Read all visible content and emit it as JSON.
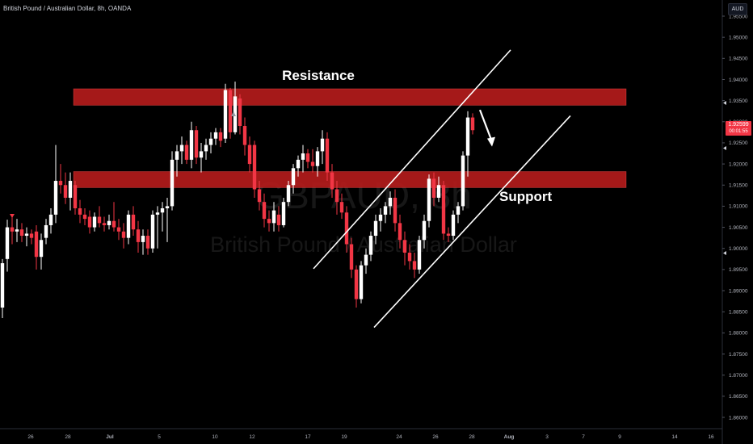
{
  "header": {
    "symbol_title": "British Pound / Australian Dollar, 8h, OANDA"
  },
  "currency_badge": "AUD",
  "watermark": {
    "ticker": "GBPAUD, 8h",
    "name": "British Pound / Australian Dollar"
  },
  "price_label": {
    "price": "1.92599",
    "countdown": "00:01:55",
    "color": "#f23645"
  },
  "colors": {
    "up": "#ffffff",
    "down": "#f23645",
    "zone": "#b71c1c"
  },
  "chart_data": {
    "type": "candlestick",
    "title": "",
    "xlabel": "",
    "ylabel": "",
    "ylim": [
      1.857,
      1.958
    ],
    "grid": false,
    "y_ticks": [
      "1.95500",
      "1.95000",
      "1.94500",
      "1.94000",
      "1.93500",
      "1.93000",
      "1.92500",
      "1.92000",
      "1.91500",
      "1.91000",
      "1.90500",
      "1.90000",
      "1.89500",
      "1.89000",
      "1.88500",
      "1.88000",
      "1.87500",
      "1.87000",
      "1.86500",
      "1.86000"
    ],
    "x_ticks": [
      "26",
      "28",
      "Jul",
      "5",
      "10",
      "12",
      "17",
      "19",
      "24",
      "26",
      "28",
      "Aug",
      "3",
      "7",
      "9",
      "14",
      "16"
    ],
    "zones": [
      {
        "label": "Resistance",
        "low": 1.9339,
        "high": 1.9378
      },
      {
        "label": "Support",
        "low": 1.9144,
        "high": 1.9182
      }
    ],
    "channel": {
      "upper": [
        [
          388,
          1.8952
        ],
        [
          632,
          1.947
        ]
      ],
      "lower": [
        [
          463,
          1.8813
        ],
        [
          706,
          1.9314
        ]
      ]
    },
    "forecast_arrow": {
      "from": [
        594,
        1.9328
      ],
      "to": [
        609,
        1.9241
      ]
    },
    "candles": [
      {
        "x": 3,
        "o": 1.886,
        "h": 1.8975,
        "l": 1.8835,
        "c": 1.8965
      },
      {
        "x": 9,
        "o": 1.8975,
        "h": 1.9068,
        "l": 1.8945,
        "c": 1.905
      },
      {
        "x": 15,
        "o": 1.905,
        "h": 1.9075,
        "l": 1.901,
        "c": 1.904
      },
      {
        "x": 21,
        "o": 1.904,
        "h": 1.907,
        "l": 1.9015,
        "c": 1.9045
      },
      {
        "x": 27,
        "o": 1.9045,
        "h": 1.906,
        "l": 1.9015,
        "c": 1.903
      },
      {
        "x": 33,
        "o": 1.903,
        "h": 1.905,
        "l": 1.9005,
        "c": 1.9035
      },
      {
        "x": 39,
        "o": 1.9035,
        "h": 1.9045,
        "l": 1.901,
        "c": 1.9025
      },
      {
        "x": 45,
        "o": 1.904,
        "h": 1.9055,
        "l": 1.895,
        "c": 1.898
      },
      {
        "x": 51,
        "o": 1.898,
        "h": 1.9035,
        "l": 1.895,
        "c": 1.902
      },
      {
        "x": 57,
        "o": 1.9025,
        "h": 1.907,
        "l": 1.901,
        "c": 1.9055
      },
      {
        "x": 63,
        "o": 1.9055,
        "h": 1.9095,
        "l": 1.9035,
        "c": 1.908
      },
      {
        "x": 69,
        "o": 1.908,
        "h": 1.9245,
        "l": 1.906,
        "c": 1.916
      },
      {
        "x": 75,
        "o": 1.916,
        "h": 1.92,
        "l": 1.913,
        "c": 1.915
      },
      {
        "x": 81,
        "o": 1.915,
        "h": 1.918,
        "l": 1.9105,
        "c": 1.912
      },
      {
        "x": 87,
        "o": 1.912,
        "h": 1.918,
        "l": 1.909,
        "c": 1.916
      },
      {
        "x": 93,
        "o": 1.915,
        "h": 1.916,
        "l": 1.908,
        "c": 1.9095
      },
      {
        "x": 99,
        "o": 1.9095,
        "h": 1.9115,
        "l": 1.906,
        "c": 1.908
      },
      {
        "x": 105,
        "o": 1.908,
        "h": 1.9095,
        "l": 1.9055,
        "c": 1.907
      },
      {
        "x": 111,
        "o": 1.9075,
        "h": 1.909,
        "l": 1.9035,
        "c": 1.905
      },
      {
        "x": 117,
        "o": 1.905,
        "h": 1.9085,
        "l": 1.904,
        "c": 1.9075
      },
      {
        "x": 123,
        "o": 1.9075,
        "h": 1.91,
        "l": 1.905,
        "c": 1.906
      },
      {
        "x": 129,
        "o": 1.906,
        "h": 1.9075,
        "l": 1.904,
        "c": 1.9055
      },
      {
        "x": 135,
        "o": 1.9055,
        "h": 1.908,
        "l": 1.9045,
        "c": 1.9065
      },
      {
        "x": 141,
        "o": 1.9065,
        "h": 1.911,
        "l": 1.904,
        "c": 1.905
      },
      {
        "x": 147,
        "o": 1.905,
        "h": 1.907,
        "l": 1.902,
        "c": 1.904
      },
      {
        "x": 153,
        "o": 1.904,
        "h": 1.906,
        "l": 1.9,
        "c": 1.9025
      },
      {
        "x": 159,
        "o": 1.9025,
        "h": 1.909,
        "l": 1.901,
        "c": 1.908
      },
      {
        "x": 165,
        "o": 1.908,
        "h": 1.91,
        "l": 1.903,
        "c": 1.9045
      },
      {
        "x": 171,
        "o": 1.9045,
        "h": 1.9065,
        "l": 1.899,
        "c": 1.9015
      },
      {
        "x": 177,
        "o": 1.9015,
        "h": 1.9045,
        "l": 1.8985,
        "c": 1.903
      },
      {
        "x": 183,
        "o": 1.903,
        "h": 1.9045,
        "l": 1.8985,
        "c": 1.9
      },
      {
        "x": 189,
        "o": 1.9,
        "h": 1.909,
        "l": 1.899,
        "c": 1.908
      },
      {
        "x": 195,
        "o": 1.908,
        "h": 1.91,
        "l": 1.9,
        "c": 1.9085
      },
      {
        "x": 201,
        "o": 1.9085,
        "h": 1.911,
        "l": 1.904,
        "c": 1.9095
      },
      {
        "x": 207,
        "o": 1.9095,
        "h": 1.912,
        "l": 1.9015,
        "c": 1.91
      },
      {
        "x": 213,
        "o": 1.91,
        "h": 1.923,
        "l": 1.909,
        "c": 1.921
      },
      {
        "x": 219,
        "o": 1.921,
        "h": 1.9245,
        "l": 1.917,
        "c": 1.923
      },
      {
        "x": 225,
        "o": 1.923,
        "h": 1.9265,
        "l": 1.92,
        "c": 1.9245
      },
      {
        "x": 231,
        "o": 1.9245,
        "h": 1.9255,
        "l": 1.92,
        "c": 1.921
      },
      {
        "x": 237,
        "o": 1.921,
        "h": 1.93,
        "l": 1.919,
        "c": 1.928
      },
      {
        "x": 243,
        "o": 1.928,
        "h": 1.929,
        "l": 1.92,
        "c": 1.9215
      },
      {
        "x": 249,
        "o": 1.9215,
        "h": 1.925,
        "l": 1.918,
        "c": 1.923
      },
      {
        "x": 255,
        "o": 1.923,
        "h": 1.926,
        "l": 1.921,
        "c": 1.9245
      },
      {
        "x": 261,
        "o": 1.9245,
        "h": 1.9275,
        "l": 1.9225,
        "c": 1.926
      },
      {
        "x": 267,
        "o": 1.926,
        "h": 1.9285,
        "l": 1.9245,
        "c": 1.9275
      },
      {
        "x": 273,
        "o": 1.9275,
        "h": 1.9285,
        "l": 1.924,
        "c": 1.9255
      },
      {
        "x": 279,
        "o": 1.926,
        "h": 1.939,
        "l": 1.925,
        "c": 1.9375
      },
      {
        "x": 285,
        "o": 1.9375,
        "h": 1.938,
        "l": 1.926,
        "c": 1.9275
      },
      {
        "x": 291,
        "o": 1.9275,
        "h": 1.9395,
        "l": 1.927,
        "c": 1.936
      },
      {
        "x": 297,
        "o": 1.9355,
        "h": 1.9365,
        "l": 1.927,
        "c": 1.929
      },
      {
        "x": 303,
        "o": 1.929,
        "h": 1.931,
        "l": 1.922,
        "c": 1.9245
      },
      {
        "x": 309,
        "o": 1.9245,
        "h": 1.9265,
        "l": 1.918,
        "c": 1.92
      },
      {
        "x": 315,
        "o": 1.9245,
        "h": 1.9255,
        "l": 1.912,
        "c": 1.914
      },
      {
        "x": 321,
        "o": 1.914,
        "h": 1.916,
        "l": 1.909,
        "c": 1.911
      },
      {
        "x": 327,
        "o": 1.911,
        "h": 1.913,
        "l": 1.905,
        "c": 1.907
      },
      {
        "x": 333,
        "o": 1.907,
        "h": 1.909,
        "l": 1.904,
        "c": 1.906
      },
      {
        "x": 339,
        "o": 1.906,
        "h": 1.911,
        "l": 1.904,
        "c": 1.909
      },
      {
        "x": 345,
        "o": 1.908,
        "h": 1.91,
        "l": 1.904,
        "c": 1.9055
      },
      {
        "x": 351,
        "o": 1.9055,
        "h": 1.912,
        "l": 1.905,
        "c": 1.911
      },
      {
        "x": 357,
        "o": 1.911,
        "h": 1.916,
        "l": 1.91,
        "c": 1.915
      },
      {
        "x": 363,
        "o": 1.915,
        "h": 1.92,
        "l": 1.913,
        "c": 1.919
      },
      {
        "x": 369,
        "o": 1.919,
        "h": 1.922,
        "l": 1.917,
        "c": 1.921
      },
      {
        "x": 375,
        "o": 1.921,
        "h": 1.9245,
        "l": 1.918,
        "c": 1.9225
      },
      {
        "x": 381,
        "o": 1.9225,
        "h": 1.9235,
        "l": 1.919,
        "c": 1.9205
      },
      {
        "x": 387,
        "o": 1.9205,
        "h": 1.9235,
        "l": 1.918,
        "c": 1.9195
      },
      {
        "x": 393,
        "o": 1.9195,
        "h": 1.924,
        "l": 1.917,
        "c": 1.923
      },
      {
        "x": 399,
        "o": 1.923,
        "h": 1.928,
        "l": 1.92,
        "c": 1.926
      },
      {
        "x": 405,
        "o": 1.926,
        "h": 1.9275,
        "l": 1.916,
        "c": 1.918
      },
      {
        "x": 411,
        "o": 1.918,
        "h": 1.92,
        "l": 1.912,
        "c": 1.914
      },
      {
        "x": 417,
        "o": 1.914,
        "h": 1.916,
        "l": 1.908,
        "c": 1.911
      },
      {
        "x": 423,
        "o": 1.911,
        "h": 1.913,
        "l": 1.907,
        "c": 1.9085
      },
      {
        "x": 429,
        "o": 1.9085,
        "h": 1.91,
        "l": 1.899,
        "c": 1.901
      },
      {
        "x": 435,
        "o": 1.901,
        "h": 1.9025,
        "l": 1.893,
        "c": 1.895
      },
      {
        "x": 441,
        "o": 1.895,
        "h": 1.896,
        "l": 1.886,
        "c": 1.888
      },
      {
        "x": 447,
        "o": 1.888,
        "h": 1.897,
        "l": 1.887,
        "c": 1.896
      },
      {
        "x": 453,
        "o": 1.896,
        "h": 1.9,
        "l": 1.894,
        "c": 1.8985
      },
      {
        "x": 459,
        "o": 1.8985,
        "h": 1.904,
        "l": 1.897,
        "c": 1.903
      },
      {
        "x": 465,
        "o": 1.903,
        "h": 1.908,
        "l": 1.901,
        "c": 1.9065
      },
      {
        "x": 471,
        "o": 1.9065,
        "h": 1.9095,
        "l": 1.904,
        "c": 1.908
      },
      {
        "x": 477,
        "o": 1.908,
        "h": 1.911,
        "l": 1.906,
        "c": 1.91
      },
      {
        "x": 483,
        "o": 1.91,
        "h": 1.9135,
        "l": 1.908,
        "c": 1.912
      },
      {
        "x": 489,
        "o": 1.912,
        "h": 1.914,
        "l": 1.904,
        "c": 1.906
      },
      {
        "x": 495,
        "o": 1.906,
        "h": 1.908,
        "l": 1.9,
        "c": 1.902
      },
      {
        "x": 501,
        "o": 1.902,
        "h": 1.904,
        "l": 1.896,
        "c": 1.899
      },
      {
        "x": 507,
        "o": 1.899,
        "h": 1.901,
        "l": 1.895,
        "c": 1.897
      },
      {
        "x": 513,
        "o": 1.897,
        "h": 1.899,
        "l": 1.893,
        "c": 1.895
      },
      {
        "x": 519,
        "o": 1.895,
        "h": 1.903,
        "l": 1.894,
        "c": 1.902
      },
      {
        "x": 525,
        "o": 1.902,
        "h": 1.908,
        "l": 1.9,
        "c": 1.9065
      },
      {
        "x": 531,
        "o": 1.9065,
        "h": 1.9175,
        "l": 1.905,
        "c": 1.9165
      },
      {
        "x": 537,
        "o": 1.9165,
        "h": 1.918,
        "l": 1.91,
        "c": 1.912
      },
      {
        "x": 543,
        "o": 1.912,
        "h": 1.917,
        "l": 1.911,
        "c": 1.915
      },
      {
        "x": 549,
        "o": 1.915,
        "h": 1.916,
        "l": 1.902,
        "c": 1.9035
      },
      {
        "x": 555,
        "o": 1.9035,
        "h": 1.905,
        "l": 1.9015,
        "c": 1.903
      },
      {
        "x": 561,
        "o": 1.903,
        "h": 1.909,
        "l": 1.902,
        "c": 1.908
      },
      {
        "x": 567,
        "o": 1.908,
        "h": 1.911,
        "l": 1.906,
        "c": 1.91
      },
      {
        "x": 573,
        "o": 1.91,
        "h": 1.923,
        "l": 1.909,
        "c": 1.922
      },
      {
        "x": 579,
        "o": 1.922,
        "h": 1.9325,
        "l": 1.917,
        "c": 1.931
      },
      {
        "x": 585,
        "o": 1.931,
        "h": 1.932,
        "l": 1.927,
        "c": 1.928
      }
    ]
  }
}
